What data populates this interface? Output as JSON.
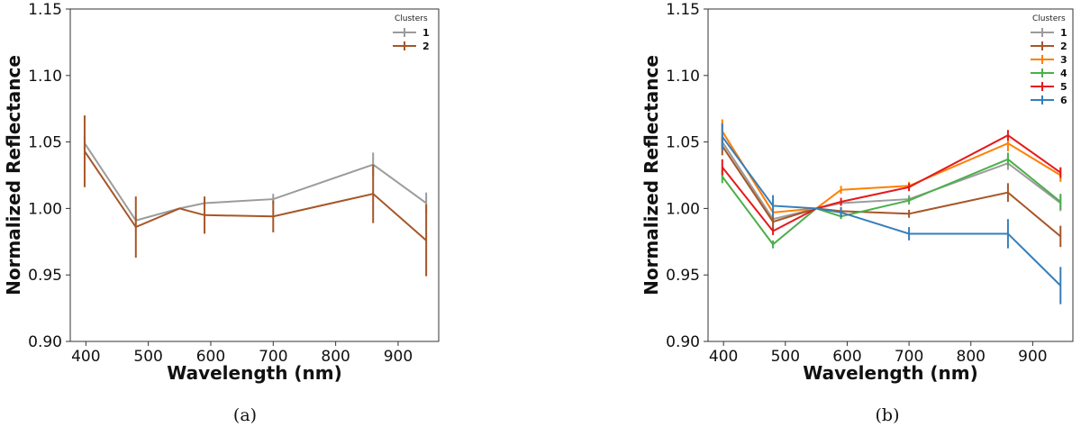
{
  "chart_data": [
    {
      "type": "line",
      "caption": "(a)",
      "xlabel": "Wavelength (nm)",
      "ylabel": "Normalized Reflectance",
      "xlim": [
        375,
        965
      ],
      "ylim": [
        0.9,
        1.15
      ],
      "xticks": [
        400,
        500,
        600,
        700,
        800,
        900
      ],
      "yticks": [
        "0.90",
        "0.95",
        "1.00",
        "1.05",
        "1.10",
        "1.15"
      ],
      "legend_title": "Clusters",
      "legend_position": "top-right",
      "x": [
        398,
        480,
        550,
        590,
        700,
        860,
        945
      ],
      "series": [
        {
          "name": "1",
          "color": "#9b9b9b",
          "values": [
            1.049,
            0.991,
            1.0,
            1.004,
            1.007,
            1.033,
            1.004
          ],
          "errors": [
            0.005,
            0.002,
            0.0,
            0.003,
            0.004,
            0.009,
            0.008
          ]
        },
        {
          "name": "2",
          "color": "#a65628",
          "values": [
            1.043,
            0.986,
            1.0,
            0.995,
            0.994,
            1.011,
            0.976
          ],
          "errors": [
            0.027,
            0.023,
            0.0,
            0.014,
            0.012,
            0.022,
            0.027
          ]
        }
      ]
    },
    {
      "type": "line",
      "caption": "(b)",
      "xlabel": "Wavelength (nm)",
      "ylabel": "Normalized Reflectance",
      "xlim": [
        375,
        965
      ],
      "ylim": [
        0.9,
        1.15
      ],
      "xticks": [
        400,
        500,
        600,
        700,
        800,
        900
      ],
      "yticks": [
        "0.90",
        "0.95",
        "1.00",
        "1.05",
        "1.10",
        "1.15"
      ],
      "legend_title": "Clusters",
      "legend_position": "top-right",
      "x": [
        398,
        480,
        550,
        590,
        700,
        860,
        945
      ],
      "series": [
        {
          "name": "1",
          "color": "#9b9b9b",
          "values": [
            1.05,
            0.992,
            1.0,
            1.004,
            1.007,
            1.034,
            1.004
          ],
          "errors": [
            0.005,
            0.003,
            0.0,
            0.002,
            0.003,
            0.005,
            0.006
          ]
        },
        {
          "name": "2",
          "color": "#a65628",
          "values": [
            1.047,
            0.99,
            1.0,
            0.998,
            0.996,
            1.012,
            0.979
          ],
          "errors": [
            0.007,
            0.004,
            0.0,
            0.003,
            0.003,
            0.007,
            0.008
          ]
        },
        {
          "name": "3",
          "color": "#ff7f00",
          "values": [
            1.058,
            0.997,
            1.0,
            1.014,
            1.017,
            1.049,
            1.025
          ],
          "errors": [
            0.009,
            0.003,
            0.0,
            0.003,
            0.003,
            0.006,
            0.005
          ]
        },
        {
          "name": "4",
          "color": "#4daf4a",
          "values": [
            1.024,
            0.973,
            1.0,
            0.994,
            1.006,
            1.037,
            1.005
          ],
          "errors": [
            0.005,
            0.003,
            0.0,
            0.002,
            0.003,
            0.005,
            0.006
          ]
        },
        {
          "name": "5",
          "color": "#e41a1c",
          "values": [
            1.031,
            0.983,
            1.0,
            1.005,
            1.016,
            1.055,
            1.027
          ],
          "errors": [
            0.006,
            0.003,
            0.0,
            0.003,
            0.003,
            0.004,
            0.004
          ]
        },
        {
          "name": "6",
          "color": "#377eb8",
          "values": [
            1.054,
            1.002,
            1.0,
            0.997,
            0.981,
            0.981,
            0.942
          ],
          "errors": [
            0.01,
            0.008,
            0.0,
            0.004,
            0.005,
            0.011,
            0.014
          ]
        }
      ]
    }
  ]
}
